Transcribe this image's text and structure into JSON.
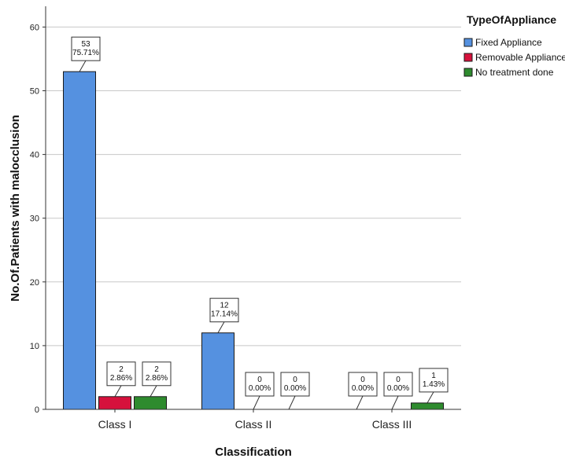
{
  "chart_data": {
    "type": "bar",
    "xlabel": "Classification",
    "ylabel": "No.Of.Patients with malocclusion",
    "categories": [
      "Class I",
      "Class II",
      "Class III"
    ],
    "ylim": [
      0,
      65
    ],
    "yticks": [
      "0",
      "10",
      "20",
      "30",
      "40",
      "50",
      "60"
    ],
    "grid": "horizontal",
    "legend": {
      "title": "TypeOfAppliance",
      "position": "top-right"
    },
    "series": [
      {
        "name": "Fixed Appliance",
        "color": "#5591e0",
        "values": [
          53,
          12,
          0
        ],
        "labels": [
          [
            "53",
            "75.71%"
          ],
          [
            "12",
            "17.14%"
          ],
          [
            "0",
            "0.00%"
          ]
        ]
      },
      {
        "name": "Removable Appliance",
        "color": "#d6113c",
        "values": [
          2,
          0,
          0
        ],
        "labels": [
          [
            "2",
            "2.86%"
          ],
          [
            "0",
            "0.00%"
          ],
          [
            "0",
            "0.00%"
          ]
        ]
      },
      {
        "name": "No treatment done",
        "color": "#2e8b2e",
        "values": [
          2,
          0,
          1
        ],
        "labels": [
          [
            "2",
            "2.86%"
          ],
          [
            "0",
            "0.00%"
          ],
          [
            "1",
            "1.43%"
          ]
        ]
      }
    ]
  }
}
